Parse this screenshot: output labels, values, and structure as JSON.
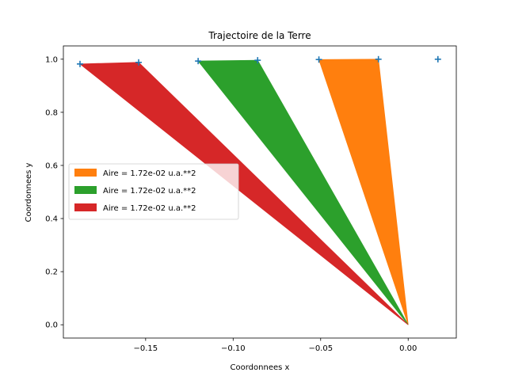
{
  "chart_data": {
    "type": "area",
    "title": "Trajectoire de la Terre",
    "xlabel": "Coordonnees x",
    "ylabel": "Coordonnees y",
    "xlim": [
      -0.197,
      0.0275
    ],
    "ylim": [
      -0.05,
      1.05
    ],
    "xticks": [
      -0.15,
      -0.1,
      -0.05,
      0.0
    ],
    "xtick_labels": [
      "−0.15",
      "−0.10",
      "−0.05",
      "0.00"
    ],
    "yticks": [
      0.0,
      0.2,
      0.4,
      0.6,
      0.8,
      1.0
    ],
    "ytick_labels": [
      "0.0",
      "0.2",
      "0.4",
      "0.6",
      "0.8",
      "1.0"
    ],
    "grid": false,
    "legend_position": "center-left",
    "origin": [
      0.0,
      0.0
    ],
    "trajectory_points": [
      {
        "x": -0.1875,
        "y": 0.982
      },
      {
        "x": -0.154,
        "y": 0.988
      },
      {
        "x": -0.12,
        "y": 0.993
      },
      {
        "x": -0.086,
        "y": 0.996
      },
      {
        "x": -0.051,
        "y": 0.9987
      },
      {
        "x": -0.017,
        "y": 0.9999
      },
      {
        "x": 0.017,
        "y": 0.9999
      }
    ],
    "series": [
      {
        "name": "Aire = 1.72e-02 u.a.**2",
        "color": "#ff7f0e",
        "points": [
          {
            "x": -0.051,
            "y": 0.9987
          },
          {
            "x": -0.017,
            "y": 0.9999
          }
        ]
      },
      {
        "name": "Aire = 1.72e-02 u.a.**2",
        "color": "#2ca02c",
        "points": [
          {
            "x": -0.12,
            "y": 0.993
          },
          {
            "x": -0.086,
            "y": 0.996
          }
        ]
      },
      {
        "name": "Aire = 1.72e-02 u.a.**2",
        "color": "#d62728",
        "points": [
          {
            "x": -0.1875,
            "y": 0.982
          },
          {
            "x": -0.154,
            "y": 0.988
          }
        ]
      }
    ],
    "marker_color": "#1f77b4",
    "marker_symbol": "+"
  }
}
